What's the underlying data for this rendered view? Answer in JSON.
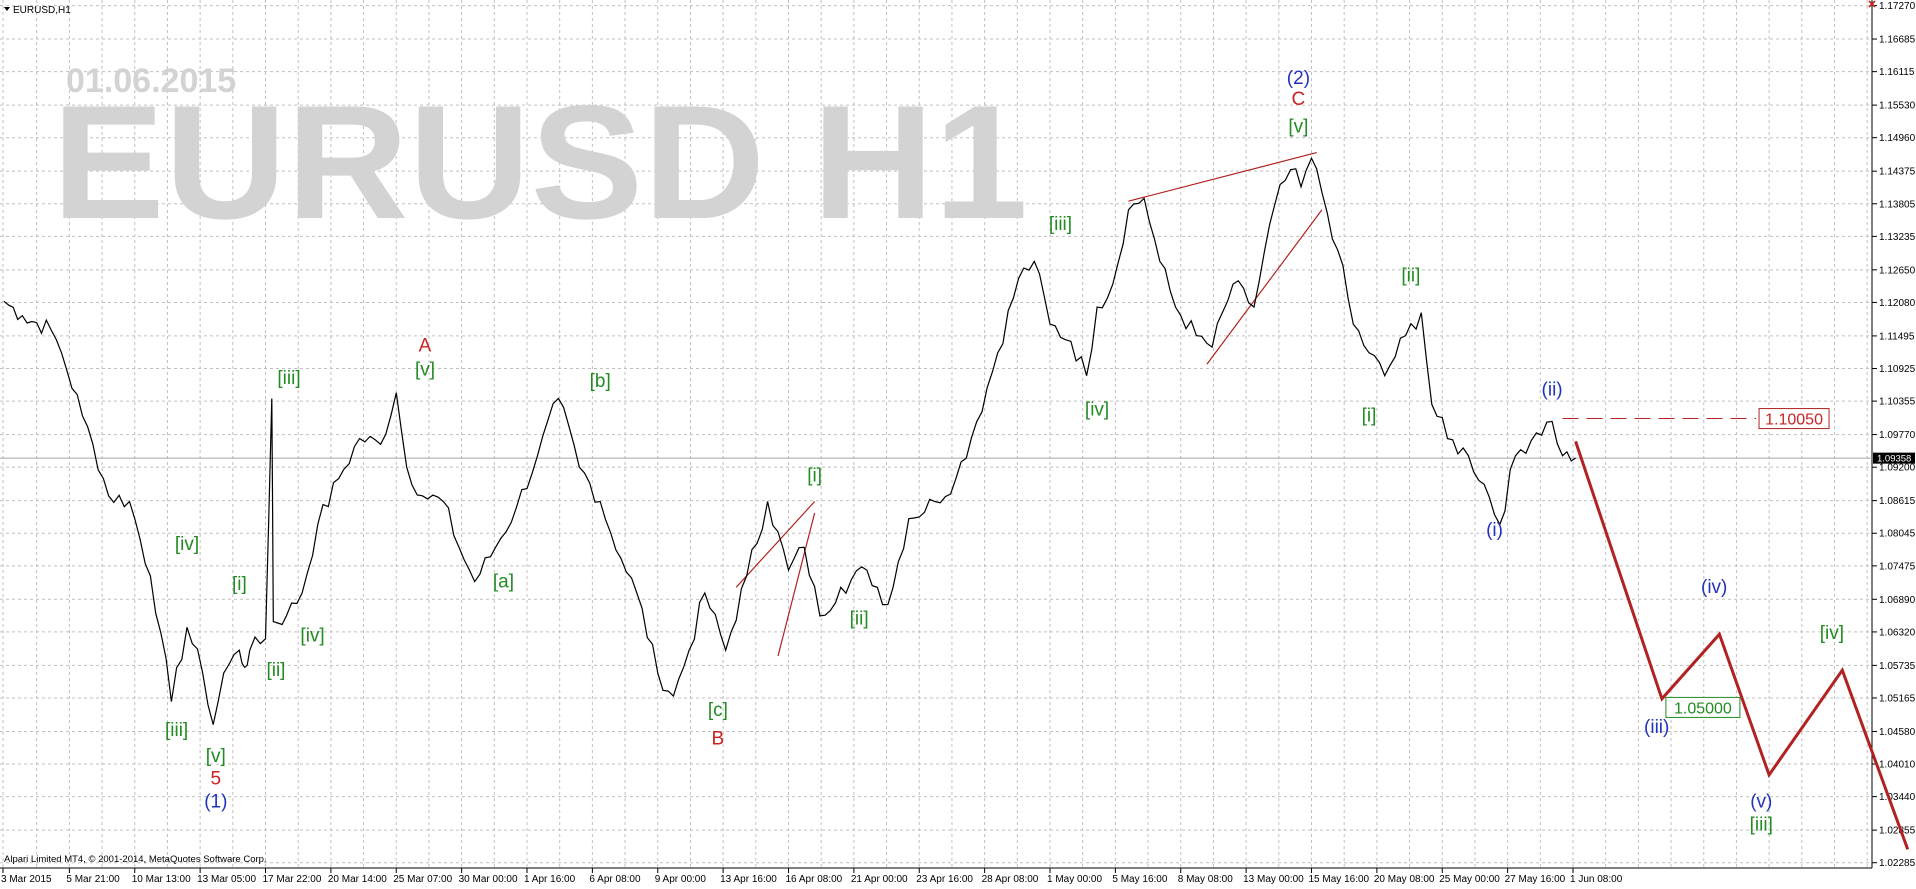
{
  "window": {
    "title": "EURUSD,H1",
    "menu_icon": "triangle-down-icon",
    "close_icon": "close-icon"
  },
  "watermark": {
    "date": "01.06.2015",
    "symbol": "EURUSD H1"
  },
  "footer": {
    "copyright": "Alpari Limited MT4, © 2001-2014, MetaQuotes Software Corp."
  },
  "colors": {
    "background": "#ffffff",
    "grid": "#c0c0c0",
    "price_line": "#000000",
    "projection": "#b22222",
    "green_label": "#228b22",
    "red_label": "#cc2222",
    "blue_label": "#2233bb",
    "watermark": "#d3d3d3"
  },
  "chart_data": {
    "type": "line",
    "symbol": "EURUSD",
    "timeframe": "H1",
    "ylim": [
      1.0228,
      1.1728
    ],
    "current_price": "1.09358",
    "y_ticks": [
      "1.17270",
      "1.16685",
      "1.16115",
      "1.15530",
      "1.14960",
      "1.14375",
      "1.13805",
      "1.13235",
      "1.12650",
      "1.12080",
      "1.11495",
      "1.10925",
      "1.10355",
      "1.09770",
      "1.09200",
      "1.08615",
      "1.08045",
      "1.07475",
      "1.06890",
      "1.06320",
      "1.05735",
      "1.05165",
      "1.04580",
      "1.04010",
      "1.03440",
      "1.02855",
      "1.02285"
    ],
    "x_ticks": [
      "3 Mar 2015",
      "5 Mar 21:00",
      "10 Mar 13:00",
      "13 Mar 05:00",
      "17 Mar 22:00",
      "20 Mar 14:00",
      "25 Mar 07:00",
      "30 Mar 00:00",
      "1 Apr 16:00",
      "6 Apr 08:00",
      "9 Apr 00:00",
      "13 Apr 16:00",
      "16 Apr 08:00",
      "21 Apr 00:00",
      "23 Apr 16:00",
      "28 Apr 08:00",
      "1 May 00:00",
      "5 May 16:00",
      "8 May 08:00",
      "13 May 00:00",
      "15 May 16:00",
      "20 May 08:00",
      "25 May 00:00",
      "27 May 16:00",
      "1 Jun 08:00"
    ],
    "price_path": [
      {
        "x": 0,
        "y": 1.121
      },
      {
        "x": 0.35,
        "y": 1.1185
      },
      {
        "x": 0.9,
        "y": 1.116
      },
      {
        "x": 1.1,
        "y": 1.112
      },
      {
        "x": 1.5,
        "y": 1.101
      },
      {
        "x": 1.7,
        "y": 1.096
      },
      {
        "x": 2.0,
        "y": 1.087
      },
      {
        "x": 2.4,
        "y": 1.086
      },
      {
        "x": 2.8,
        "y": 1.073
      },
      {
        "x": 3.0,
        "y": 1.063
      },
      {
        "x": 3.2,
        "y": 1.051
      },
      {
        "x": 3.5,
        "y": 1.064
      },
      {
        "x": 3.8,
        "y": 1.056
      },
      {
        "x": 4.0,
        "y": 1.047
      },
      {
        "x": 4.2,
        "y": 1.056
      },
      {
        "x": 4.5,
        "y": 1.06
      },
      {
        "x": 4.6,
        "y": 1.057
      },
      {
        "x": 4.7,
        "y": 1.06
      },
      {
        "x": 5.0,
        "y": 1.062
      },
      {
        "x": 5.12,
        "y": 1.104
      },
      {
        "x": 5.15,
        "y": 1.065
      },
      {
        "x": 5.4,
        "y": 1.066
      },
      {
        "x": 5.7,
        "y": 1.07
      },
      {
        "x": 6.0,
        "y": 1.082
      },
      {
        "x": 6.4,
        "y": 1.09
      },
      {
        "x": 6.8,
        "y": 1.097
      },
      {
        "x": 7.2,
        "y": 1.096
      },
      {
        "x": 7.5,
        "y": 1.105
      },
      {
        "x": 7.7,
        "y": 1.092
      },
      {
        "x": 8.0,
        "y": 1.087
      },
      {
        "x": 8.4,
        "y": 1.086
      },
      {
        "x": 8.7,
        "y": 1.078
      },
      {
        "x": 9.0,
        "y": 1.072
      },
      {
        "x": 9.4,
        "y": 1.078
      },
      {
        "x": 9.8,
        "y": 1.085
      },
      {
        "x": 10.2,
        "y": 1.094
      },
      {
        "x": 10.6,
        "y": 1.104
      },
      {
        "x": 11.0,
        "y": 1.092
      },
      {
        "x": 11.4,
        "y": 1.086
      },
      {
        "x": 11.8,
        "y": 1.076
      },
      {
        "x": 12.1,
        "y": 1.07
      },
      {
        "x": 12.5,
        "y": 1.056
      },
      {
        "x": 12.8,
        "y": 1.052
      },
      {
        "x": 13.1,
        "y": 1.06
      },
      {
        "x": 13.4,
        "y": 1.07
      },
      {
        "x": 13.8,
        "y": 1.06
      },
      {
        "x": 14.2,
        "y": 1.073
      },
      {
        "x": 14.6,
        "y": 1.086
      },
      {
        "x": 15.0,
        "y": 1.074
      },
      {
        "x": 15.3,
        "y": 1.078
      },
      {
        "x": 15.6,
        "y": 1.066
      },
      {
        "x": 16.0,
        "y": 1.071
      },
      {
        "x": 16.5,
        "y": 1.074
      },
      {
        "x": 16.9,
        "y": 1.068
      },
      {
        "x": 17.3,
        "y": 1.083
      },
      {
        "x": 17.8,
        "y": 1.086
      },
      {
        "x": 18.2,
        "y": 1.09
      },
      {
        "x": 18.6,
        "y": 1.1
      },
      {
        "x": 19.0,
        "y": 1.112
      },
      {
        "x": 19.4,
        "y": 1.125
      },
      {
        "x": 19.7,
        "y": 1.128
      },
      {
        "x": 20.0,
        "y": 1.117
      },
      {
        "x": 20.4,
        "y": 1.114
      },
      {
        "x": 20.7,
        "y": 1.108
      },
      {
        "x": 20.9,
        "y": 1.12
      },
      {
        "x": 21.2,
        "y": 1.124
      },
      {
        "x": 21.5,
        "y": 1.137
      },
      {
        "x": 21.8,
        "y": 1.139
      },
      {
        "x": 22.1,
        "y": 1.128
      },
      {
        "x": 22.4,
        "y": 1.12
      },
      {
        "x": 22.8,
        "y": 1.115
      },
      {
        "x": 23.1,
        "y": 1.113
      },
      {
        "x": 23.5,
        "y": 1.124
      },
      {
        "x": 23.9,
        "y": 1.12
      },
      {
        "x": 24.3,
        "y": 1.138
      },
      {
        "x": 24.6,
        "y": 1.144
      },
      {
        "x": 24.8,
        "y": 1.141
      },
      {
        "x": 25.0,
        "y": 1.146
      },
      {
        "x": 25.2,
        "y": 1.14
      },
      {
        "x": 25.5,
        "y": 1.13
      },
      {
        "x": 25.8,
        "y": 1.117
      },
      {
        "x": 26.1,
        "y": 1.112
      },
      {
        "x": 26.4,
        "y": 1.108
      },
      {
        "x": 26.8,
        "y": 1.115
      },
      {
        "x": 27.1,
        "y": 1.119
      },
      {
        "x": 27.3,
        "y": 1.103
      },
      {
        "x": 27.6,
        "y": 1.097
      },
      {
        "x": 28.0,
        "y": 1.094
      },
      {
        "x": 28.3,
        "y": 1.089
      },
      {
        "x": 28.6,
        "y": 1.082
      },
      {
        "x": 28.9,
        "y": 1.094
      },
      {
        "x": 29.3,
        "y": 1.098
      },
      {
        "x": 29.6,
        "y": 1.1
      },
      {
        "x": 29.8,
        "y": 1.094
      },
      {
        "x": 30.05,
        "y": 1.0936
      }
    ],
    "projection_path": [
      {
        "x": 30.05,
        "y": 1.0965
      },
      {
        "x": 31.7,
        "y": 1.0515
      },
      {
        "x": 32.8,
        "y": 1.0628
      },
      {
        "x": 33.75,
        "y": 1.0382
      },
      {
        "x": 35.15,
        "y": 1.0565
      },
      {
        "x": 36.4,
        "y": 1.0252
      }
    ],
    "levels": [
      {
        "value": "1.10050",
        "y": 1.1005,
        "from_x": 29.8,
        "to_x": 33.5,
        "style": "dashed"
      },
      {
        "value": "1.05000",
        "y": 1.05,
        "from_x": 31.7,
        "to_x": 31.9,
        "style": "tag"
      }
    ],
    "trendlines": [
      {
        "from": [
          14.0,
          1.071
        ],
        "to": [
          15.5,
          1.086
        ]
      },
      {
        "from": [
          14.8,
          1.059
        ],
        "to": [
          15.5,
          1.084
        ]
      },
      {
        "from": [
          21.5,
          1.1385
        ],
        "to": [
          25.1,
          1.147
        ]
      },
      {
        "from": [
          23.0,
          1.11
        ],
        "to": [
          25.2,
          1.137
        ]
      }
    ],
    "annotations": [
      {
        "text": "(2)",
        "x": 24.75,
        "y": 1.159,
        "color": "blue"
      },
      {
        "text": "C",
        "x": 24.75,
        "y": 1.1553,
        "color": "red"
      },
      {
        "text": "[v]",
        "x": 24.75,
        "y": 1.1505,
        "color": "green"
      },
      {
        "text": "[iii]",
        "x": 20.2,
        "y": 1.1335,
        "color": "green"
      },
      {
        "text": "[iv]",
        "x": 20.9,
        "y": 1.101,
        "color": "green"
      },
      {
        "text": "[ii]",
        "x": 26.9,
        "y": 1.1245,
        "color": "green"
      },
      {
        "text": "[i]",
        "x": 26.1,
        "y": 1.1,
        "color": "green"
      },
      {
        "text": "(ii)",
        "x": 29.6,
        "y": 1.1045,
        "color": "blue"
      },
      {
        "text": "(i)",
        "x": 28.5,
        "y": 1.08,
        "color": "blue"
      },
      {
        "text": "A",
        "x": 8.05,
        "y": 1.1122,
        "color": "red"
      },
      {
        "text": "[v]",
        "x": 8.05,
        "y": 1.108,
        "color": "green"
      },
      {
        "text": "[b]",
        "x": 11.4,
        "y": 1.106,
        "color": "green"
      },
      {
        "text": "[iii]",
        "x": 5.45,
        "y": 1.1065,
        "color": "green"
      },
      {
        "text": "[iv]",
        "x": 3.5,
        "y": 1.0775,
        "color": "green"
      },
      {
        "text": "[i]",
        "x": 4.5,
        "y": 1.0705,
        "color": "green"
      },
      {
        "text": "[ii]",
        "x": 5.2,
        "y": 1.0555,
        "color": "green"
      },
      {
        "text": "[iv]",
        "x": 5.9,
        "y": 1.0615,
        "color": "green"
      },
      {
        "text": "[iii]",
        "x": 3.3,
        "y": 1.045,
        "color": "green"
      },
      {
        "text": "[v]",
        "x": 4.05,
        "y": 1.0405,
        "color": "green"
      },
      {
        "text": "5",
        "x": 4.05,
        "y": 1.0365,
        "color": "red"
      },
      {
        "text": "(1)",
        "x": 4.05,
        "y": 1.0325,
        "color": "blue"
      },
      {
        "text": "[a]",
        "x": 9.55,
        "y": 1.071,
        "color": "green"
      },
      {
        "text": "[c]",
        "x": 13.65,
        "y": 1.0485,
        "color": "green"
      },
      {
        "text": "B",
        "x": 13.65,
        "y": 1.0435,
        "color": "red"
      },
      {
        "text": "[i]",
        "x": 15.5,
        "y": 1.0895,
        "color": "green"
      },
      {
        "text": "[ii]",
        "x": 16.35,
        "y": 1.0645,
        "color": "green"
      },
      {
        "text": "(iii)",
        "x": 31.6,
        "y": 1.0455,
        "color": "blue"
      },
      {
        "text": "(iv)",
        "x": 32.7,
        "y": 1.07,
        "color": "blue"
      },
      {
        "text": "(v)",
        "x": 33.6,
        "y": 1.0325,
        "color": "blue"
      },
      {
        "text": "[iii]",
        "x": 33.6,
        "y": 1.0285,
        "color": "green"
      },
      {
        "text": "[iv]",
        "x": 34.95,
        "y": 1.062,
        "color": "green"
      }
    ]
  }
}
